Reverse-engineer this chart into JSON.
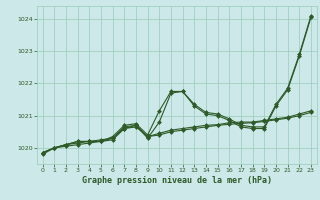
{
  "x": [
    0,
    1,
    2,
    3,
    4,
    5,
    6,
    7,
    8,
    9,
    10,
    11,
    12,
    13,
    14,
    15,
    16,
    17,
    18,
    19,
    20,
    21,
    22,
    23
  ],
  "line1": [
    1019.85,
    1020.0,
    1020.1,
    1020.2,
    1020.2,
    1020.2,
    1020.35,
    1020.7,
    1020.75,
    1020.4,
    1021.15,
    1021.75,
    1021.75,
    1021.35,
    1021.1,
    1021.05,
    1020.9,
    1020.7,
    1020.65,
    1020.65,
    1021.35,
    1021.85,
    1022.9,
    1024.1
  ],
  "line2": [
    1019.8,
    1020.0,
    1020.05,
    1020.1,
    1020.15,
    1020.2,
    1020.25,
    1020.6,
    1020.7,
    1020.3,
    1020.8,
    1021.7,
    1021.75,
    1021.3,
    1021.05,
    1021.0,
    1020.85,
    1020.65,
    1020.6,
    1020.6,
    1021.3,
    1021.8,
    1022.85,
    1024.05
  ],
  "line3": [
    1019.85,
    1020.0,
    1020.1,
    1020.15,
    1020.2,
    1020.25,
    1020.3,
    1020.6,
    1020.65,
    1020.35,
    1020.4,
    1020.5,
    1020.55,
    1020.6,
    1020.65,
    1020.7,
    1020.73,
    1020.76,
    1020.78,
    1020.82,
    1020.87,
    1020.92,
    1021.0,
    1021.1
  ],
  "line4": [
    1019.85,
    1020.0,
    1020.1,
    1020.2,
    1020.2,
    1020.2,
    1020.3,
    1020.65,
    1020.7,
    1020.35,
    1020.45,
    1020.55,
    1020.6,
    1020.65,
    1020.7,
    1020.72,
    1020.78,
    1020.8,
    1020.8,
    1020.85,
    1020.9,
    1020.95,
    1021.05,
    1021.15
  ],
  "bg_color": "#cce8e8",
  "grid_color": "#99ccbb",
  "line_color": "#2d5a27",
  "xlabel": "Graphe pression niveau de la mer (hPa)",
  "ylim": [
    1019.5,
    1024.4
  ],
  "yticks": [
    1020,
    1021,
    1022,
    1023,
    1024
  ],
  "xticks": [
    0,
    1,
    2,
    3,
    4,
    5,
    6,
    7,
    8,
    9,
    10,
    11,
    12,
    13,
    14,
    15,
    16,
    17,
    18,
    19,
    20,
    21,
    22,
    23
  ],
  "marker": "D",
  "markersize": 2.0,
  "linewidth": 0.8,
  "tick_fontsize": 4.5,
  "xlabel_fontsize": 6.0
}
